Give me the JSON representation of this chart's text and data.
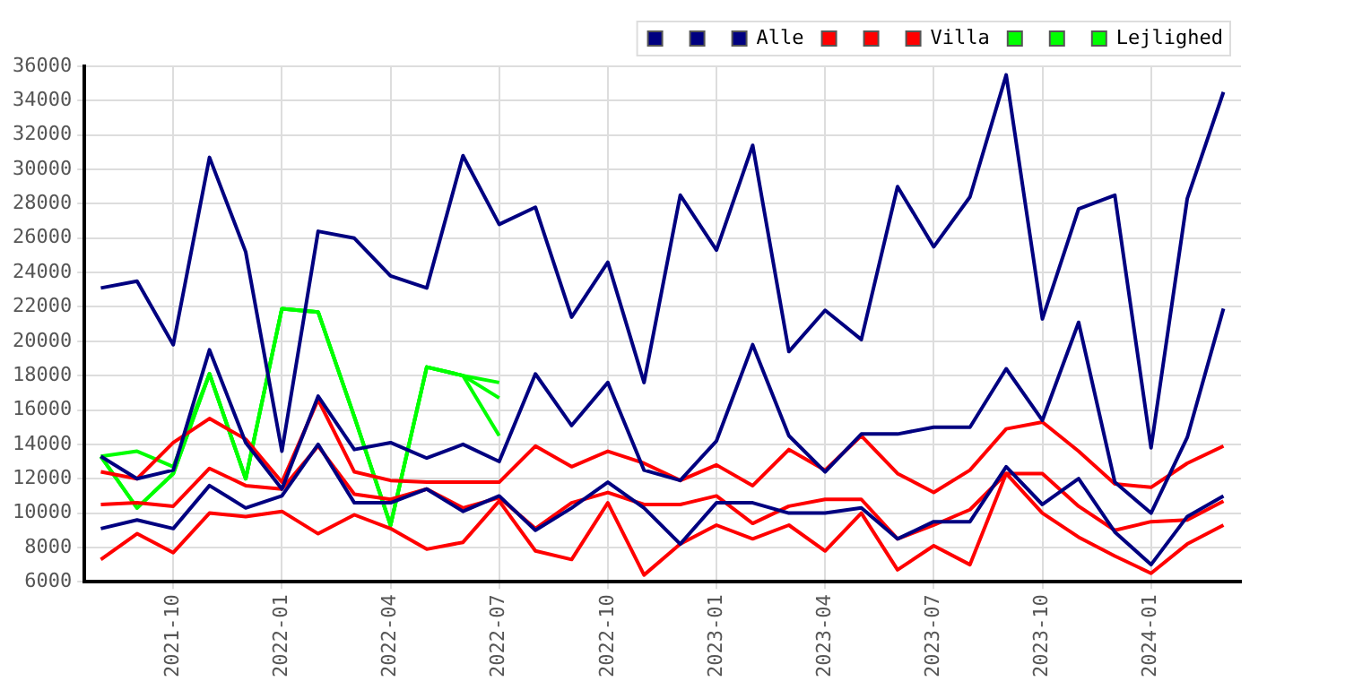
{
  "chart_data": {
    "type": "line",
    "x": [
      "2021-08",
      "2021-09",
      "2021-10",
      "2021-11",
      "2021-12",
      "2022-01",
      "2022-02",
      "2022-03",
      "2022-04",
      "2022-05",
      "2022-06",
      "2022-07",
      "2022-08",
      "2022-09",
      "2022-10",
      "2022-11",
      "2022-12",
      "2023-01",
      "2023-02",
      "2023-03",
      "2023-04",
      "2023-05",
      "2023-06",
      "2023-07",
      "2023-08",
      "2023-09",
      "2023-10",
      "2023-11",
      "2023-12",
      "2024-01",
      "2024-02",
      "2024-03"
    ],
    "xlim": [
      "2021-07-18",
      "2024-03-16"
    ],
    "xticks": [
      "2021-10",
      "2022-01",
      "2022-04",
      "2022-07",
      "2022-10",
      "2023-01",
      "2023-04",
      "2023-07",
      "2023-10",
      "2024-01"
    ],
    "ylim": [
      6000,
      36000
    ],
    "yticks": [
      6000,
      8000,
      10000,
      12000,
      14000,
      16000,
      18000,
      20000,
      22000,
      24000,
      26000,
      28000,
      30000,
      32000,
      34000,
      36000
    ],
    "grid": true,
    "legend": "top right",
    "marker": "none",
    "line_style": "solid",
    "series": [
      {
        "color": "#000080",
        "values": [
          9100,
          9600,
          9100,
          11600,
          10300,
          11000,
          14000,
          10600,
          10600,
          11400,
          10100,
          11000,
          9000,
          10300,
          11800,
          10300,
          8200,
          10600,
          10600,
          10000,
          10000,
          10300,
          8500,
          9500,
          9500,
          12700,
          10500,
          12000,
          8900,
          7000,
          9800,
          11000
        ]
      },
      {
        "color": "#000080",
        "values": [
          13300,
          12000,
          12500,
          19500,
          14100,
          11400,
          16800,
          13700,
          14100,
          13200,
          14000,
          13000,
          18100,
          15100,
          17600,
          12500,
          11900,
          14200,
          19800,
          14500,
          12400,
          14600,
          14600,
          15000,
          15000,
          18400,
          15400,
          21100,
          11800,
          10000,
          14400,
          21900
        ]
      },
      {
        "name": "Alle",
        "color": "#000080",
        "values": [
          23100,
          23500,
          19800,
          30700,
          25200,
          13600,
          26400,
          26000,
          23800,
          23100,
          30800,
          26800,
          27800,
          21400,
          24600,
          17600,
          28500,
          25300,
          31400,
          19400,
          21800,
          20100,
          29000,
          25500,
          28400,
          35500,
          21300,
          27700,
          28500,
          13800,
          28300,
          34500
        ]
      },
      {
        "color": "#ff0000",
        "values": [
          7300,
          8800,
          7700,
          10000,
          9800,
          10100,
          8800,
          9900,
          9100,
          7900,
          8300,
          10700,
          7800,
          7300,
          10600,
          6400,
          8200,
          9300,
          8500,
          9300,
          7800,
          10000,
          6700,
          8100,
          7000,
          12300,
          10000,
          8600,
          7500,
          6500,
          8200,
          9300
        ]
      },
      {
        "color": "#ff0000",
        "values": [
          10500,
          10600,
          10400,
          12600,
          11600,
          11400,
          13900,
          11100,
          10800,
          11400,
          10300,
          10900,
          9100,
          10600,
          11200,
          10500,
          10500,
          11000,
          9400,
          10400,
          10800,
          10800,
          8500,
          9300,
          10200,
          12300,
          12300,
          10400,
          9000,
          9500,
          9600,
          10700
        ]
      },
      {
        "name": "Villa",
        "color": "#ff0000",
        "values": [
          12400,
          12000,
          14100,
          15500,
          14300,
          11800,
          16600,
          12400,
          11900,
          11800,
          11800,
          11800,
          13900,
          12700,
          13600,
          12900,
          11900,
          12800,
          11600,
          13700,
          12500,
          14500,
          12300,
          11200,
          12500,
          14900,
          15300,
          13600,
          11700,
          11500,
          12900,
          13900
        ]
      },
      {
        "color": "#00ff00",
        "values": [
          13300,
          10300,
          12300,
          18100,
          12000,
          21900,
          21700,
          15600,
          9300,
          18500,
          18000,
          14500,
          null,
          null,
          null,
          null,
          null,
          null,
          null,
          null,
          null,
          null,
          null,
          null,
          null,
          null,
          null,
          null,
          null,
          null,
          null,
          null
        ]
      },
      {
        "color": "#00ff00",
        "values": [
          13300,
          10300,
          12300,
          18100,
          12000,
          21900,
          21700,
          15600,
          9300,
          18500,
          18000,
          16700,
          null,
          null,
          null,
          null,
          null,
          null,
          null,
          null,
          null,
          null,
          null,
          null,
          null,
          null,
          null,
          null,
          null,
          null,
          null,
          null
        ]
      },
      {
        "name": "Lejlighed",
        "color": "#00ff00",
        "values": [
          13300,
          13600,
          12700,
          18100,
          12000,
          21900,
          21700,
          15600,
          9300,
          18500,
          18000,
          17600,
          null,
          null,
          null,
          null,
          null,
          null,
          null,
          null,
          null,
          null,
          null,
          null,
          null,
          null,
          null,
          null,
          null,
          null,
          null,
          null
        ]
      }
    ]
  }
}
